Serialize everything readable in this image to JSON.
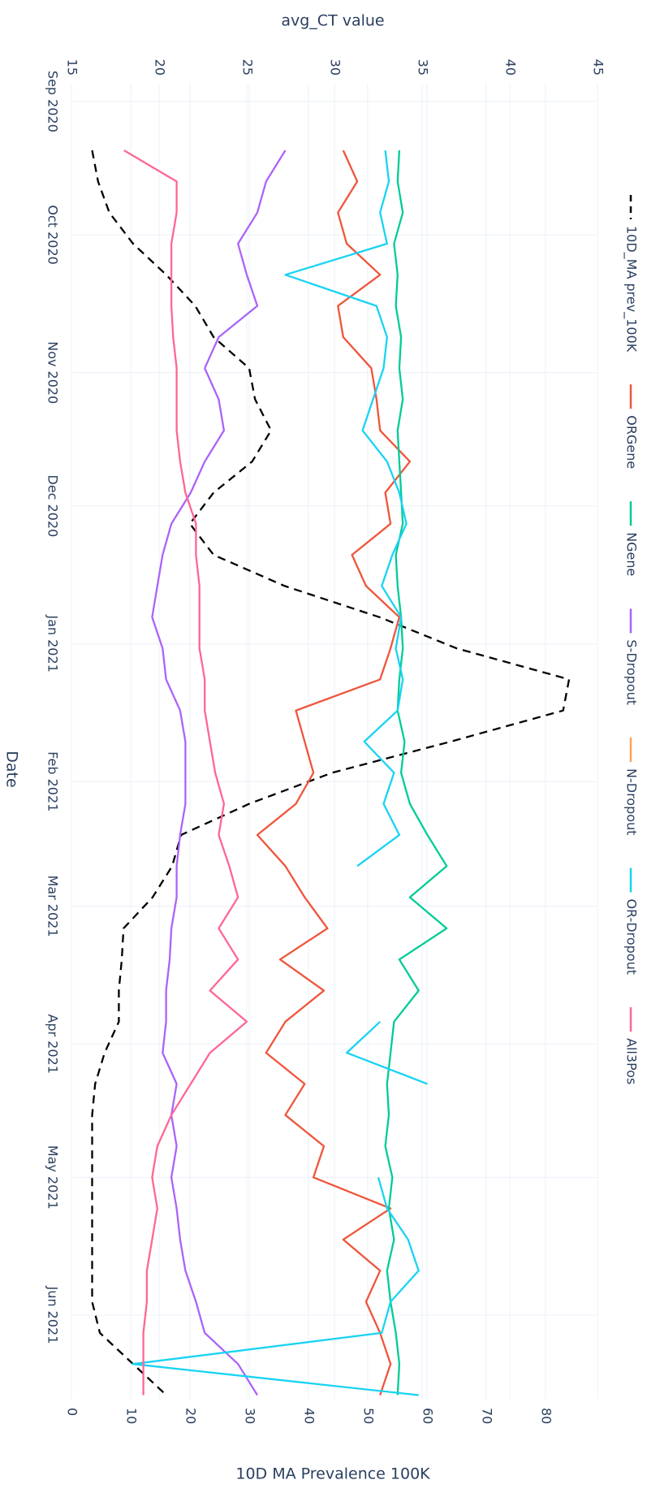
{
  "chart_data": {
    "type": "line",
    "x_label": "Date",
    "y_label": "avg_CT value",
    "y2_label": "10D MA Prevalence 100K",
    "x": [
      "2020-09-12",
      "2020-09-19",
      "2020-09-26",
      "2020-10-03",
      "2020-10-10",
      "2020-10-17",
      "2020-10-24",
      "2020-10-31",
      "2020-11-07",
      "2020-11-14",
      "2020-11-21",
      "2020-11-28",
      "2020-12-05",
      "2020-12-12",
      "2020-12-19",
      "2020-12-26",
      "2021-01-02",
      "2021-01-09",
      "2021-01-16",
      "2021-01-23",
      "2021-01-30",
      "2021-02-06",
      "2021-02-13",
      "2021-02-20",
      "2021-02-27",
      "2021-03-06",
      "2021-03-13",
      "2021-03-20",
      "2021-03-27",
      "2021-04-03",
      "2021-04-10",
      "2021-04-17",
      "2021-04-24",
      "2021-05-01",
      "2021-05-08",
      "2021-05-15",
      "2021-05-22",
      "2021-05-29",
      "2021-06-05",
      "2021-06-12",
      "2021-06-19"
    ],
    "xlim": [
      "2020-08-28",
      "2021-06-20"
    ],
    "xticks": [
      {
        "value": "2020-09-01",
        "label": "Sep 2020"
      },
      {
        "value": "2020-10-01",
        "label": "Oct 2020"
      },
      {
        "value": "2020-11-01",
        "label": "Nov 2020"
      },
      {
        "value": "2020-12-01",
        "label": "Dec 2020"
      },
      {
        "value": "2021-01-01",
        "label": "Jan 2021"
      },
      {
        "value": "2021-02-01",
        "label": "Feb 2021"
      },
      {
        "value": "2021-03-01",
        "label": "Mar 2021"
      },
      {
        "value": "2021-04-01",
        "label": "Apr 2021"
      },
      {
        "value": "2021-05-01",
        "label": "May 2021"
      },
      {
        "value": "2021-06-01",
        "label": "Jun 2021"
      }
    ],
    "ylim": [
      15,
      45
    ],
    "yticks": [
      15,
      20,
      25,
      30,
      35,
      40,
      45
    ],
    "y2lim": [
      0,
      88.8
    ],
    "y2ticks": [
      0,
      10,
      20,
      30,
      40,
      50,
      60,
      70,
      80
    ],
    "grid": true,
    "series": [
      {
        "name": "10D_MA prev_100K",
        "color": "#000000",
        "dash": "dash",
        "axis": "y2",
        "values": [
          3.5,
          4.5,
          6.4,
          10.4,
          16,
          20.9,
          24,
          30,
          31,
          33.7,
          30.5,
          24,
          20,
          24,
          36,
          52,
          65,
          84,
          83,
          64,
          44,
          30,
          18.5,
          17,
          13.7,
          8.8,
          8.5,
          8,
          8,
          5.6,
          4,
          3.5,
          3.5,
          3.5,
          3.5,
          3.5,
          3.5,
          3.5,
          4.8,
          10.4,
          16
        ]
      },
      {
        "name": "ORGene",
        "color": "#EF553B",
        "values": [
          30.5,
          31.3,
          30.2,
          30.7,
          32.6,
          30.2,
          30.5,
          32.1,
          32.4,
          32.6,
          34.3,
          32.9,
          33.2,
          31,
          31.8,
          33.7,
          33.2,
          32.6,
          27.8,
          28.3,
          28.8,
          27.8,
          25.6,
          27.2,
          28.3,
          29.6,
          26.9,
          29.4,
          27.2,
          26.1,
          28.3,
          27.2,
          29.4,
          28.8,
          33.2,
          30.5,
          32.6,
          31.8,
          32.6,
          33.2,
          32.6
        ]
      },
      {
        "name": "NGene",
        "color": "#00CC96",
        "values": [
          33.7,
          33.6,
          33.9,
          33.4,
          33.6,
          33.5,
          33.8,
          33.7,
          33.9,
          33.6,
          33.7,
          33.8,
          33.9,
          33.5,
          33.6,
          33.8,
          33.9,
          33.7,
          33.6,
          34.0,
          33.8,
          34.3,
          35.3,
          36.4,
          34.3,
          36.4,
          33.7,
          34.8,
          33.4,
          33.2,
          33.0,
          33.1,
          32.9,
          33.3,
          33.1,
          33.4,
          33.0,
          33.2,
          33.5,
          33.7,
          33.6
        ]
      },
      {
        "name": "S-Dropout",
        "color": "#AB63FA",
        "values": [
          27.2,
          26.1,
          25.6,
          24.5,
          25,
          25.6,
          23.4,
          22.6,
          23.4,
          23.7,
          22.6,
          21.8,
          20.7,
          20.2,
          19.9,
          19.6,
          20.2,
          20.4,
          21.2,
          21.5,
          21.5,
          21.5,
          21.2,
          21,
          21,
          20.7,
          20.6,
          20.4,
          20.4,
          20.2,
          21,
          20.7,
          21,
          20.7,
          21,
          21.2,
          21.5,
          22.1,
          22.6,
          24.5,
          25.6
        ]
      },
      {
        "name": "N-Dropout",
        "color": "#FFA15A",
        "values": [
          null,
          null,
          null,
          null,
          null,
          null,
          null,
          null,
          null,
          null,
          null,
          null,
          null,
          null,
          null,
          null,
          null,
          null,
          null,
          null,
          null,
          null,
          null,
          null,
          null,
          null,
          null,
          null,
          null,
          null,
          null,
          null,
          null,
          null,
          null,
          null,
          null,
          null,
          null,
          null,
          null
        ]
      },
      {
        "name": "OR-Dropout",
        "color": "#19D3F3",
        "values": [
          32.9,
          33.1,
          32.6,
          33.0,
          27.2,
          32.4,
          33.0,
          32.8,
          32.2,
          31.6,
          33.0,
          33.7,
          34.1,
          33.3,
          32.7,
          33.8,
          33.5,
          33.9,
          33.6,
          31.7,
          33.4,
          32.8,
          33.7,
          31.3,
          null,
          32.0,
          null,
          null,
          32.6,
          30.7,
          35.3,
          null,
          null,
          32.5,
          33.0,
          34.2,
          34.8,
          33.2,
          32.7,
          18.5,
          34.8
        ]
      },
      {
        "name": "All3Pos",
        "color": "#FF6692",
        "values": [
          18,
          21,
          21,
          20.7,
          20.7,
          20.7,
          20.8,
          21,
          21,
          21,
          21.2,
          21.5,
          22.1,
          22.1,
          22.3,
          22.3,
          22.3,
          22.6,
          22.6,
          22.9,
          23.2,
          23.7,
          23.4,
          24,
          24.5,
          23.4,
          24.5,
          22.9,
          25,
          22.9,
          21.8,
          20.7,
          19.9,
          19.6,
          19.9,
          19.6,
          19.3,
          19.3,
          19.1,
          19.1,
          19.1
        ]
      }
    ]
  }
}
